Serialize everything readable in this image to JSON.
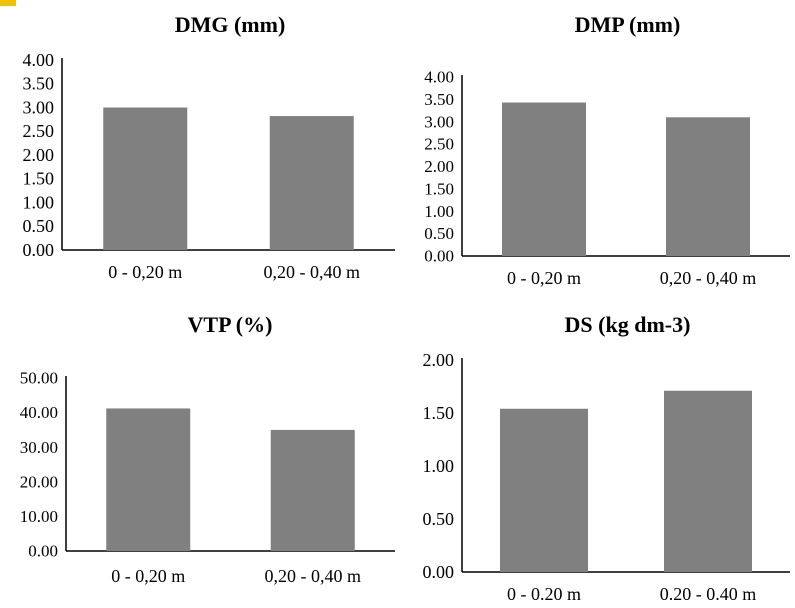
{
  "chart_data": [
    {
      "type": "bar",
      "title": "DMG (mm)",
      "categories": [
        "0 - 0,20 m",
        "0,20 - 0,40 m"
      ],
      "values": [
        3.0,
        2.82
      ],
      "yticks": [
        "0.00",
        "0.50",
        "1.00",
        "1.50",
        "2.00",
        "2.50",
        "3.00",
        "3.50",
        "4.00"
      ],
      "ylim": [
        0,
        4
      ],
      "grid": false,
      "bar_color": "#808080"
    },
    {
      "type": "bar",
      "title": "DMP (mm)",
      "categories": [
        "0 - 0,20 m",
        "0,20 - 0,40 m"
      ],
      "values": [
        3.43,
        3.1
      ],
      "yticks": [
        "0.00",
        "0.50",
        "1.00",
        "1.50",
        "2.00",
        "2.50",
        "3.00",
        "3.50",
        "4.00"
      ],
      "ylim": [
        0,
        4
      ],
      "grid": false,
      "bar_color": "#808080"
    },
    {
      "type": "bar",
      "title": "VTP (%)",
      "categories": [
        "0 - 0,20 m",
        "0,20 - 0,40 m"
      ],
      "values": [
        41.2,
        35.0
      ],
      "yticks": [
        "0.00",
        "10.00",
        "20.00",
        "30.00",
        "40.00",
        "50.00"
      ],
      "ylim": [
        0,
        50
      ],
      "grid": false,
      "bar_color": "#808080"
    },
    {
      "type": "bar",
      "title": "DS (kg dm-3)",
      "categories": [
        "0 - 0.20 m",
        "0.20 - 0.40 m"
      ],
      "values": [
        1.54,
        1.71
      ],
      "yticks": [
        "0.00",
        "0.50",
        "1.00",
        "1.50",
        "2.00"
      ],
      "ylim": [
        0,
        2
      ],
      "grid": false,
      "bar_color": "#808080"
    }
  ],
  "colors": {
    "bar": "#808080",
    "axis": "#000000",
    "corner_mark": "#f2c200"
  }
}
